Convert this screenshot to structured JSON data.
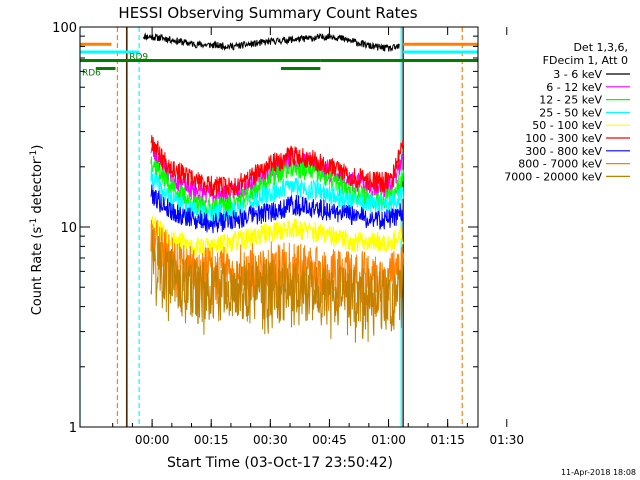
{
  "chart_data": {
    "type": "line",
    "title": "HESSI Observing Summary Count Rates",
    "xlabel": "Start Time (03-Oct-17 23:50:42)",
    "ylabel_main": "Count Rate (s",
    "ylabel_exp": "-1",
    "ylabel_tail": " detector",
    "ylabel_end": ")",
    "footer_date": "11-Apr-2018 18:08",
    "x_unit": "minutes since start",
    "xlim": [
      -9,
      92
    ],
    "ylim": [
      1,
      100
    ],
    "y_scale": "log",
    "x_ticks": [
      {
        "value": 9.3,
        "label": "00:00"
      },
      {
        "value": 24.3,
        "label": "00:15"
      },
      {
        "value": 39.3,
        "label": "00:30"
      },
      {
        "value": 54.3,
        "label": "00:45"
      },
      {
        "value": 69.3,
        "label": "01:00"
      },
      {
        "value": 84.3,
        "label": "01:15"
      },
      {
        "value": 99.3,
        "label": "01:30"
      }
    ],
    "y_ticks": [
      {
        "value": 1,
        "label": "1"
      },
      {
        "value": 10,
        "label": "10"
      },
      {
        "value": 100,
        "label": "100"
      }
    ],
    "legend": {
      "header": [
        "Det 1,3,6,",
        "FDecim 1, Att 0"
      ],
      "placement": "right"
    },
    "series": [
      {
        "name": "3 - 6 keV",
        "color": "#000000",
        "x": [
          7,
          12,
          20,
          30,
          40,
          50,
          55,
          60,
          65,
          70,
          72
        ],
        "y": [
          90,
          88,
          82,
          80,
          85,
          88,
          90,
          85,
          80,
          78,
          80
        ]
      },
      {
        "name": "6 - 12 keV",
        "color": "#ff00ff",
        "x": [
          9,
          12,
          16,
          20,
          25,
          30,
          35,
          40,
          45,
          50,
          55,
          60,
          65,
          70,
          73
        ],
        "y": [
          25,
          20,
          17,
          15,
          14.5,
          15,
          17,
          20,
          22,
          21,
          19,
          17,
          16,
          16,
          22
        ]
      },
      {
        "name": "12 - 25 keV",
        "color": "#00ff00",
        "x": [
          9,
          12,
          16,
          20,
          25,
          30,
          35,
          40,
          45,
          50,
          55,
          60,
          65,
          70,
          73
        ],
        "y": [
          22,
          18,
          15,
          13,
          12.5,
          13,
          15,
          18,
          20,
          19,
          17,
          15,
          14,
          14,
          18
        ]
      },
      {
        "name": "25 - 50 keV",
        "color": "#00ffff",
        "x": [
          9,
          12,
          16,
          20,
          25,
          30,
          35,
          40,
          45,
          50,
          55,
          60,
          65,
          70,
          73
        ],
        "y": [
          18,
          15,
          13,
          12,
          11.5,
          12,
          13.5,
          15,
          16,
          15.5,
          14.5,
          13.5,
          13,
          13,
          15
        ]
      },
      {
        "name": "50 - 100 keV",
        "color": "#ffff00",
        "x": [
          9,
          12,
          16,
          20,
          25,
          30,
          35,
          40,
          45,
          50,
          55,
          60,
          65,
          70,
          73
        ],
        "y": [
          11,
          9.5,
          8.5,
          8,
          8,
          8.5,
          9,
          9.5,
          10,
          9.5,
          9,
          8.5,
          8.5,
          8.5,
          9
        ]
      },
      {
        "name": "100 - 300 keV",
        "color": "#ff0000",
        "x": [
          9,
          12,
          16,
          20,
          25,
          30,
          35,
          40,
          45,
          50,
          55,
          60,
          65,
          70,
          73
        ],
        "y": [
          28,
          22,
          19,
          17,
          16,
          16,
          18,
          21,
          23,
          22,
          20,
          18,
          17,
          17,
          26
        ]
      },
      {
        "name": "300 - 800 keV",
        "color": "#0000ff",
        "x": [
          9,
          12,
          16,
          20,
          25,
          30,
          35,
          40,
          45,
          50,
          55,
          60,
          65,
          70,
          73
        ],
        "y": [
          15,
          13,
          11.5,
          11,
          10.5,
          11,
          11.5,
          12,
          13,
          12.5,
          12,
          11.5,
          11,
          11,
          12
        ]
      },
      {
        "name": "800 - 7000 keV",
        "color": "#ff8000",
        "x": [
          9,
          12,
          16,
          20,
          25,
          30,
          35,
          40,
          45,
          50,
          55,
          60,
          65,
          70,
          73
        ],
        "y": [
          9,
          7.5,
          6.5,
          6,
          6,
          6,
          6.2,
          6.3,
          6.2,
          6,
          5.8,
          5.7,
          5.6,
          5.5,
          6
        ]
      },
      {
        "name": "7000 - 20000 keV",
        "color": "#c08000",
        "x": [
          9,
          12,
          16,
          20,
          25,
          30,
          35,
          40,
          45,
          50,
          55,
          60,
          65,
          70,
          73
        ],
        "y": [
          8,
          6.5,
          5.5,
          5,
          5,
          5,
          5,
          5.2,
          5.1,
          5,
          4.8,
          4.7,
          4.6,
          4.6,
          5
        ]
      }
    ],
    "vertical_markers": [
      {
        "x": -9,
        "color": "#00ffff",
        "style": "solid"
      },
      {
        "x": 0.5,
        "color": "#ff8000",
        "style": "dashed"
      },
      {
        "x": 2.8,
        "color": "#ff8000",
        "style": "solid"
      },
      {
        "x": 2.9,
        "color": "#000000",
        "style": "solid"
      },
      {
        "x": 6,
        "color": "#00ffff",
        "style": "dashed"
      },
      {
        "x": 72.5,
        "color": "#00ffff",
        "style": "solid"
      },
      {
        "x": 73.0,
        "color": "#000000",
        "style": "solid"
      },
      {
        "x": 88,
        "color": "#ff8000",
        "style": "dashed"
      }
    ],
    "status_bars": [
      {
        "label": "",
        "color": "#ff8000",
        "y": 82,
        "segments": [
          [
            -9,
            -1
          ],
          [
            73,
            92
          ]
        ]
      },
      {
        "label": "",
        "color": "#00ffff",
        "y": 75,
        "segments": [
          [
            -9,
            6
          ],
          [
            73,
            92
          ]
        ]
      },
      {
        "label": "RD9",
        "color": "#008000",
        "y": 68,
        "segments": [
          [
            -9,
            42
          ],
          [
            42,
            52
          ],
          [
            52,
            92
          ]
        ]
      },
      {
        "label": "RD6",
        "color": "#008000",
        "y": 62,
        "segments": [
          [
            -5,
            0
          ],
          [
            42,
            52
          ]
        ]
      }
    ]
  }
}
